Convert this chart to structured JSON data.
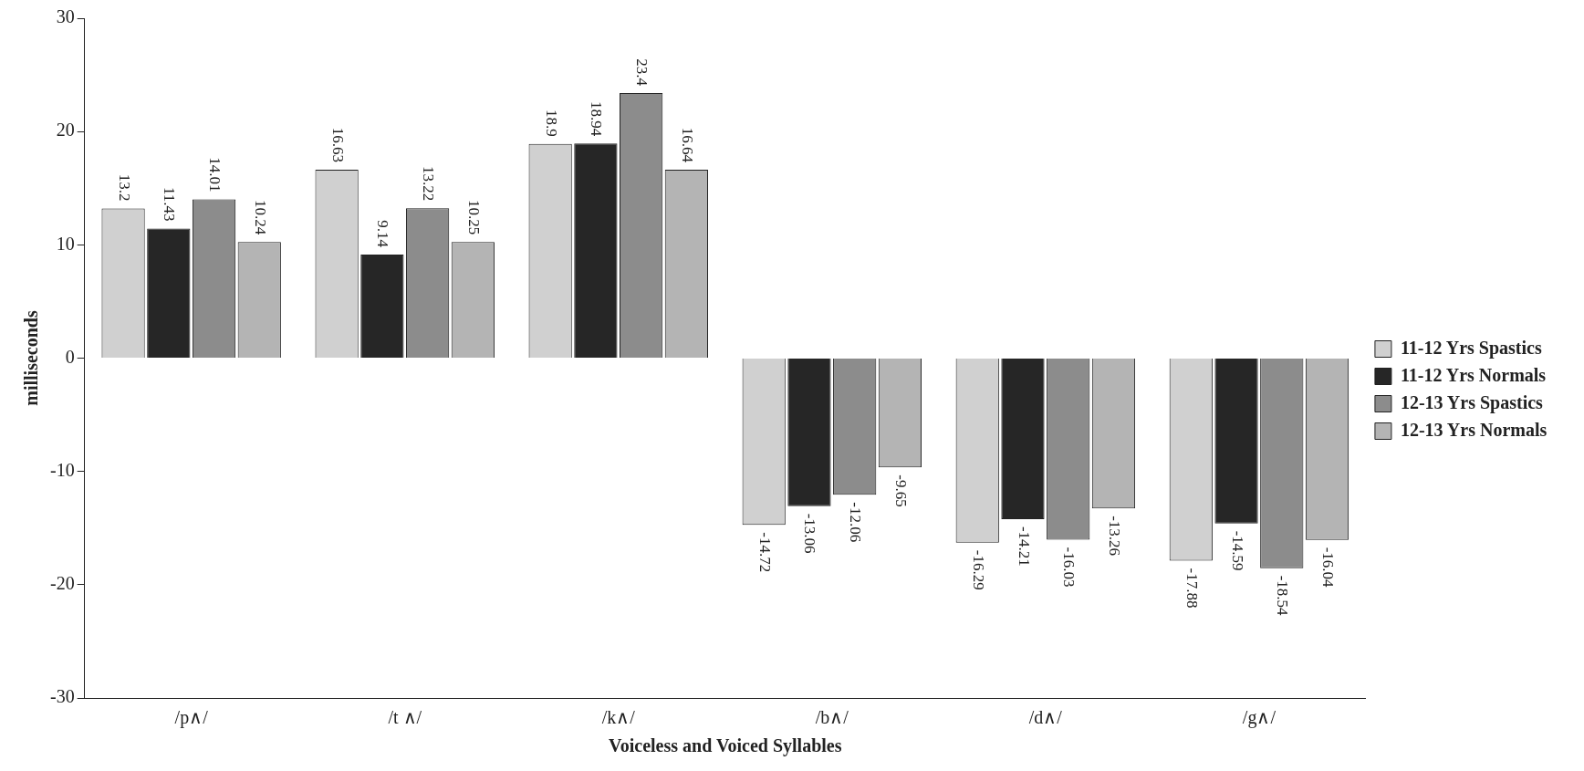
{
  "chart_data": {
    "type": "bar",
    "xlabel": "Voiceless and Voiced Syllables",
    "ylabel": "milliseconds",
    "categories": [
      "/p∧/",
      "/t ∧/",
      "/k∧/",
      "/b∧/",
      "/d∧/",
      "/g∧/"
    ],
    "series": [
      {
        "name": "11-12 Yrs Spastics",
        "color": "#d0d0d0",
        "values": [
          13.2,
          16.63,
          18.9,
          -14.72,
          -16.29,
          -17.88
        ]
      },
      {
        "name": "11-12 Yrs Normals",
        "color": "#262626",
        "values": [
          11.43,
          9.14,
          18.94,
          -13.06,
          -14.21,
          -14.59
        ]
      },
      {
        "name": "12-13 Yrs Spastics",
        "color": "#8c8c8c",
        "values": [
          14.01,
          13.22,
          23.4,
          -12.06,
          -16.03,
          -18.54
        ]
      },
      {
        "name": "12-13 Yrs Normals",
        "color": "#b4b4b4",
        "values": [
          10.24,
          10.25,
          16.64,
          -9.65,
          -13.26,
          -16.04
        ]
      }
    ],
    "ylim": [
      -30,
      30
    ],
    "yticks": [
      -30,
      -20,
      -10,
      0,
      10,
      20,
      30
    ],
    "grid": false,
    "legend": "right",
    "data_labels": true
  }
}
